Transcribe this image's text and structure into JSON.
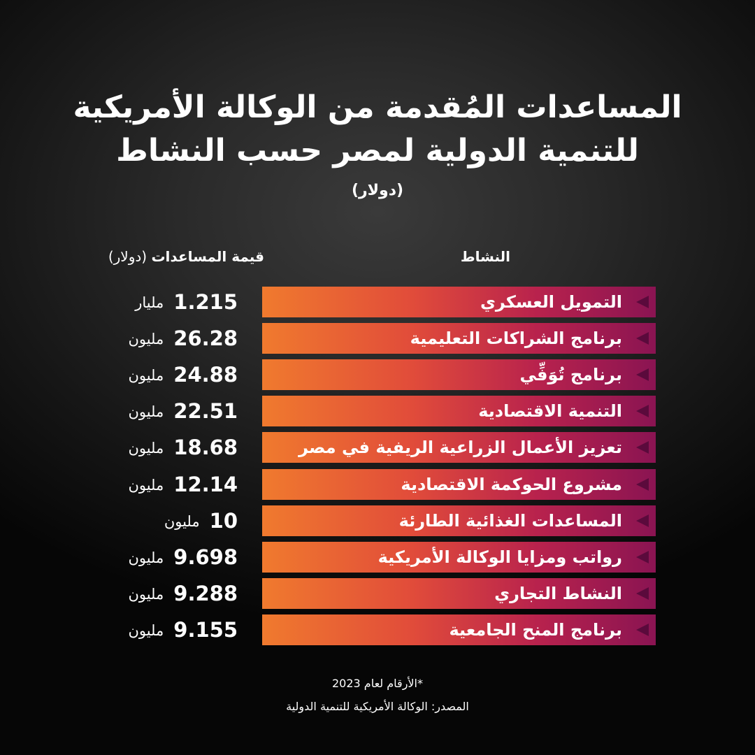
{
  "header": {
    "title_line1": "المساعدات المُقدمة من الوكالة الأمريكية",
    "title_line2": "للتنمية الدولية لمصر حسب النشاط",
    "subtitle": "(دولار)"
  },
  "columns": {
    "activity": "النشاط",
    "value_main": "قيمة المساعدات",
    "value_unit": "(دولار)"
  },
  "chart_data": {
    "type": "table",
    "title": "المساعدات المُقدمة من الوكالة الأمريكية للتنمية الدولية لمصر حسب النشاط",
    "unit": "(دولار)",
    "rows": [
      {
        "activity": "التمويل العسكري",
        "value": "1.215",
        "unit": "مليار"
      },
      {
        "activity": "برنامج الشراكات التعليمية",
        "value": "26.28",
        "unit": "مليون"
      },
      {
        "activity": "برنامج تُوَفِّي",
        "value": "24.88",
        "unit": "مليون"
      },
      {
        "activity": "التنمية الاقتصادية",
        "value": "22.51",
        "unit": "مليون"
      },
      {
        "activity": "تعزيز الأعمال الزراعية الريفية في مصر",
        "value": "18.68",
        "unit": "مليون"
      },
      {
        "activity": "مشروع الحوكمة الاقتصادية",
        "value": "12.14",
        "unit": "مليون"
      },
      {
        "activity": "المساعدات الغذائية الطارئة",
        "value": "10",
        "unit": "مليون"
      },
      {
        "activity": "رواتب ومزايا الوكالة الأمريكية",
        "value": "9.698",
        "unit": "مليون"
      },
      {
        "activity": "النشاط التجاري",
        "value": "9.288",
        "unit": "مليون"
      },
      {
        "activity": "برنامج المنح الجامعية",
        "value": "9.155",
        "unit": "مليون"
      }
    ]
  },
  "footer": {
    "year_note": "*الأرقام لعام 2023",
    "source": "المصدر: الوكالة الأمريكية للتنمية الدولية"
  },
  "colors": {
    "bar_start": "#f07a2e",
    "bar_end": "#8a1452",
    "marker": "#5b0a3c",
    "background": "#2a2a2a"
  }
}
